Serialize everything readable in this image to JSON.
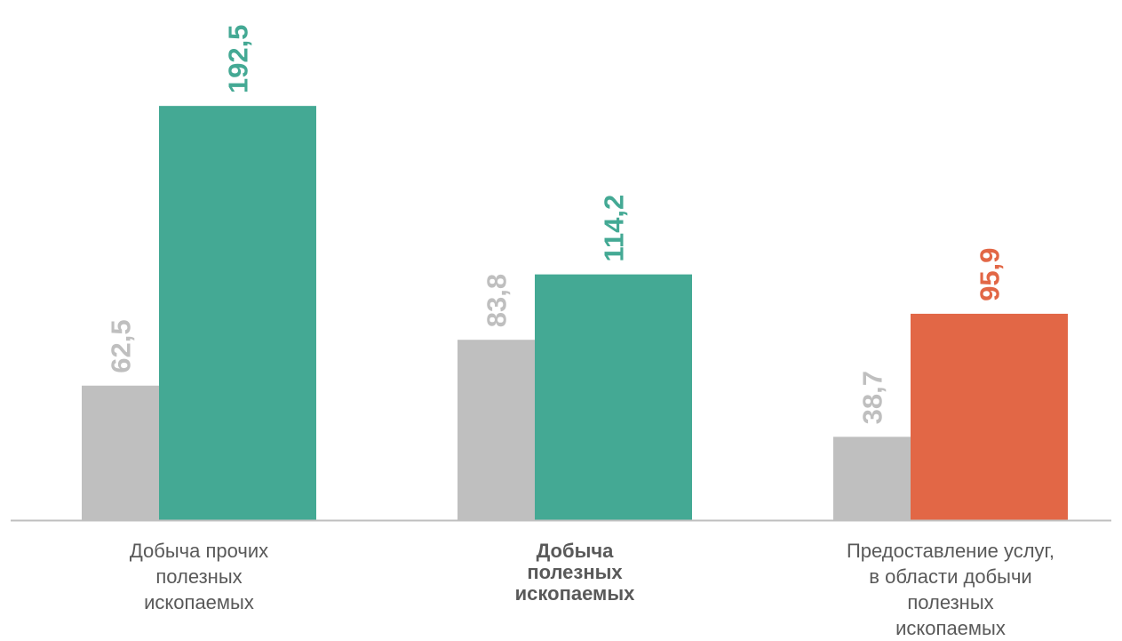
{
  "chart_data": {
    "type": "bar",
    "title": "",
    "xlabel": "",
    "ylabel": "",
    "ylim": [
      0,
      200
    ],
    "grid": false,
    "legend": "none",
    "categories": [
      {
        "lines": [
          "Добыча прочих",
          "полезных",
          "ископаемых"
        ],
        "bold": false
      },
      {
        "lines": [
          "Добыча",
          "полезных",
          "ископаемых"
        ],
        "bold": true
      },
      {
        "lines": [
          "Предоставление услуг,",
          "в области добычи",
          "полезных",
          "ископаемых"
        ],
        "bold": false
      }
    ],
    "series": [
      {
        "values": [
          62.5,
          83.8,
          38.7
        ],
        "labels": [
          "62,5",
          "83,8",
          "38,7"
        ],
        "colors": [
          "#bfbfbf",
          "#bfbfbf",
          "#bfbfbf"
        ],
        "label_color": "#bfbfbf"
      },
      {
        "values": [
          192.5,
          114.2,
          95.9
        ],
        "labels": [
          "192,5",
          "114,2",
          "95,9"
        ],
        "colors": [
          "#44a994",
          "#44a994",
          "#e26746"
        ],
        "label_colors": [
          "#44a994",
          "#44a994",
          "#e26746"
        ]
      }
    ],
    "axis_color": "#bfbfbf"
  }
}
